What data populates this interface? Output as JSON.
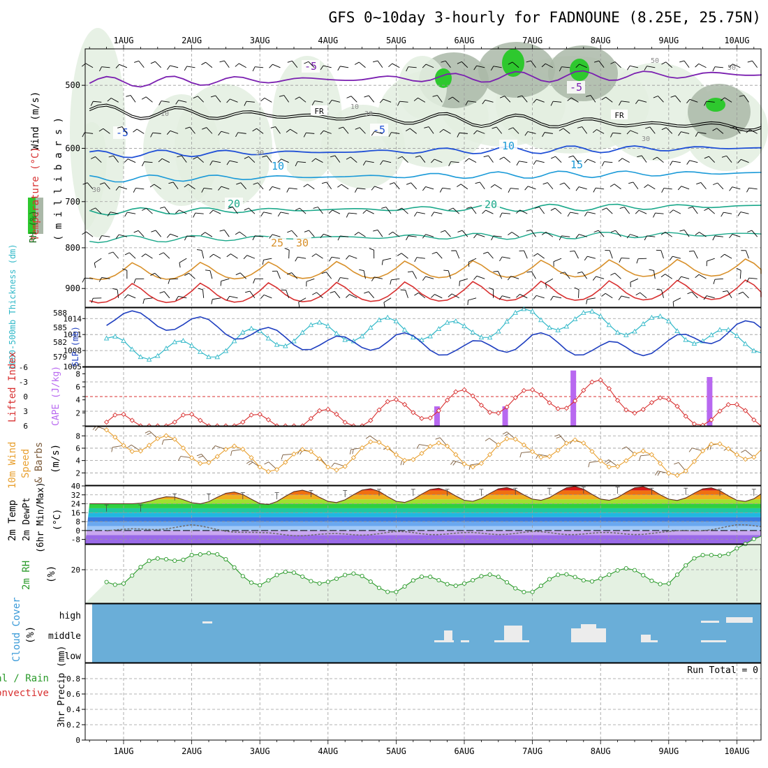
{
  "title": "GFS 0~10day 3-hourly for FADNOUNE (8.25E, 25.75N)",
  "colors": {
    "background": "#ffffff",
    "frame": "#000000",
    "grid": "#9a9a9a",
    "temperature_cold": "#7a1fb0",
    "temperature_cool": "#1f4fd6",
    "temperature_mild": "#1a9ad8",
    "temperature_warm": "#1aa88a",
    "temperature_hot": "#d8902a",
    "temperature_very_hot": "#d83030",
    "freezing_line": "#000000",
    "rh_fill_light": "#e3efe0",
    "rh_fill_mid": "#aab8a8",
    "rh_fill_high": "#2ec82e",
    "slp_line": "#1f3fc0",
    "thickness_line": "#30b8c8",
    "lifted_index": "#d83030",
    "cape_bar": "#b868f0",
    "wind_speed": "#e8a030",
    "wind_barb": "#7a5a3a",
    "dewpoint": "#707070",
    "rh2m_line": "#2a9a2a",
    "rh2m_fill": "#e4f1e2",
    "cloud_background": "#6aaed8",
    "cloud_fill": "#ececec",
    "label_wind": "#000000",
    "label_temp": "#d83030",
    "label_lifted": "#d83030",
    "label_cape": "#b868f0",
    "label_speed": "#e8a030",
    "label_cloud": "#3a9ad8",
    "label_precip_total": "#2a9a2a",
    "label_precip_conv": "#d83030"
  },
  "x_axis": {
    "dates": [
      "1AUG",
      "2AUG",
      "3AUG",
      "4AUG",
      "5AUG",
      "6AUG",
      "7AUG",
      "8AUG",
      "9AUG",
      "10AUG"
    ],
    "minor_ticks_per_day": 4
  },
  "panels": {
    "upper_air": {
      "ylabel_parts": [
        "RH (%)",
        "Temperature (°C)",
        "Wind (m/s)"
      ],
      "ylabel_sub": "( m i l l i b a r s )",
      "pressure_levels": [
        500,
        600,
        700,
        800,
        900
      ],
      "ylim": [
        450,
        950
      ],
      "scale": "log-pressure",
      "contour_labels": {
        "freezing": "FR",
        "temperature": [
          "-5",
          "-5",
          "-5",
          "-5",
          "-5",
          "10",
          "10",
          "15",
          "20",
          "20",
          "25",
          "30"
        ],
        "rh": [
          "10",
          "10",
          "30",
          "30",
          "30",
          "50",
          "50",
          "30"
        ]
      }
    },
    "slp_thickness": {
      "ylabel_left": "1000-500mb Thickness (dm)",
      "ylabel_right": "SLP (mb)",
      "thickness_ticks": [
        "588",
        "585",
        "582",
        "579"
      ],
      "slp_ticks": [
        "1014",
        "1011",
        "1008",
        "1005"
      ],
      "thickness_range": [
        577,
        589
      ],
      "slp_range": [
        1005,
        1016
      ]
    },
    "stability": {
      "ylabel_left": "Lifted Index",
      "ylabel_right": "CAPE (J/kg)",
      "li_ticks": [
        "-6",
        "-3",
        "0",
        "3",
        "6"
      ],
      "cape_ticks": [
        "8",
        "6",
        "4",
        "2"
      ],
      "li_range": [
        -6,
        6
      ],
      "cape_bars": [
        {
          "day": 4.6,
          "value": 3
        },
        {
          "day": 5.6,
          "value": 3
        },
        {
          "day": 6.6,
          "value": 8.5
        },
        {
          "day": 8.6,
          "value": 7.5
        }
      ]
    },
    "wind10m": {
      "ylabel_lines": [
        "10m Wind",
        "Speed",
        "& Barbs"
      ],
      "unit": "(m/s)",
      "ticks": [
        "8",
        "6",
        "4",
        "2"
      ],
      "ylim": [
        0,
        9.5
      ]
    },
    "temp2m": {
      "ylabel_lines": [
        "2m Temp",
        "2m DewPt",
        "(6hr Min/Max)"
      ],
      "unit": "(°C)",
      "ticks": [
        "40",
        "32",
        "24",
        "16",
        "8",
        "0",
        "-8"
      ],
      "ylim": [
        -12,
        40
      ],
      "color_bands": [
        {
          "from": -12,
          "to": -4,
          "color": "#9a6ae8"
        },
        {
          "from": -4,
          "to": 0,
          "color": "#c9a7f0"
        },
        {
          "from": 0,
          "to": 4,
          "color": "#a0c8f8"
        },
        {
          "from": 4,
          "to": 8,
          "color": "#6aa8f0"
        },
        {
          "from": 8,
          "to": 12,
          "color": "#3a7ae0"
        },
        {
          "from": 12,
          "to": 16,
          "color": "#20b8e0"
        },
        {
          "from": 16,
          "to": 20,
          "color": "#20c8a0"
        },
        {
          "from": 20,
          "to": 24,
          "color": "#30d040"
        },
        {
          "from": 24,
          "to": 28,
          "color": "#a0e030"
        },
        {
          "from": 28,
          "to": 32,
          "color": "#f0b020"
        },
        {
          "from": 32,
          "to": 36,
          "color": "#f07010"
        },
        {
          "from": 36,
          "to": 40,
          "color": "#d81818"
        }
      ]
    },
    "rh2m": {
      "ylabel": "2m RH",
      "unit": "(%)",
      "ticks": [
        "20"
      ],
      "ylim": [
        0,
        35
      ]
    },
    "cloud": {
      "ylabel": "Cloud Cover",
      "unit": "(%)",
      "levels": [
        "high",
        "middle",
        "low"
      ]
    },
    "precip": {
      "ylabel_lines": [
        "Total / Rain",
        "Convective"
      ],
      "ylabel_axis": "3hr Precip (mm)",
      "ticks": [
        "0.8",
        "0.6",
        "0.4",
        "0.2",
        "0"
      ],
      "ylim": [
        0,
        1
      ],
      "run_total_label": "Run Total = 0"
    }
  },
  "chart_data": {
    "type": "line",
    "time_start": "1AUG",
    "time_step_hours": 3,
    "temperature_2m_max_by_day": [
      24,
      34,
      35,
      37,
      38,
      38,
      39,
      40,
      39,
      38
    ],
    "temperature_2m_min_by_day": [
      24,
      24,
      23,
      25,
      25,
      26,
      27,
      27,
      27,
      26
    ],
    "dewpoint_2m_by_day": [
      0,
      4,
      -3,
      -4,
      -2,
      -3,
      -2,
      -3,
      -2,
      4
    ],
    "rh_2m_by_day": [
      10,
      27,
      9,
      11,
      5,
      10,
      5,
      13,
      10,
      31
    ],
    "slp_by_day": [
      1014,
      1013,
      1011,
      1009,
      1010,
      1008,
      1010,
      1008,
      1009,
      1012
    ],
    "thickness_by_day": [
      581,
      580,
      583,
      584,
      585,
      584,
      587,
      586,
      585,
      582
    ],
    "wind10m_by_day": [
      7.5,
      5.5,
      4,
      4,
      6,
      4.5,
      6.5,
      5,
      3,
      6
    ],
    "lifted_index_by_day": [
      6,
      6,
      6,
      5,
      3,
      1,
      1,
      -1,
      3,
      4
    ]
  }
}
